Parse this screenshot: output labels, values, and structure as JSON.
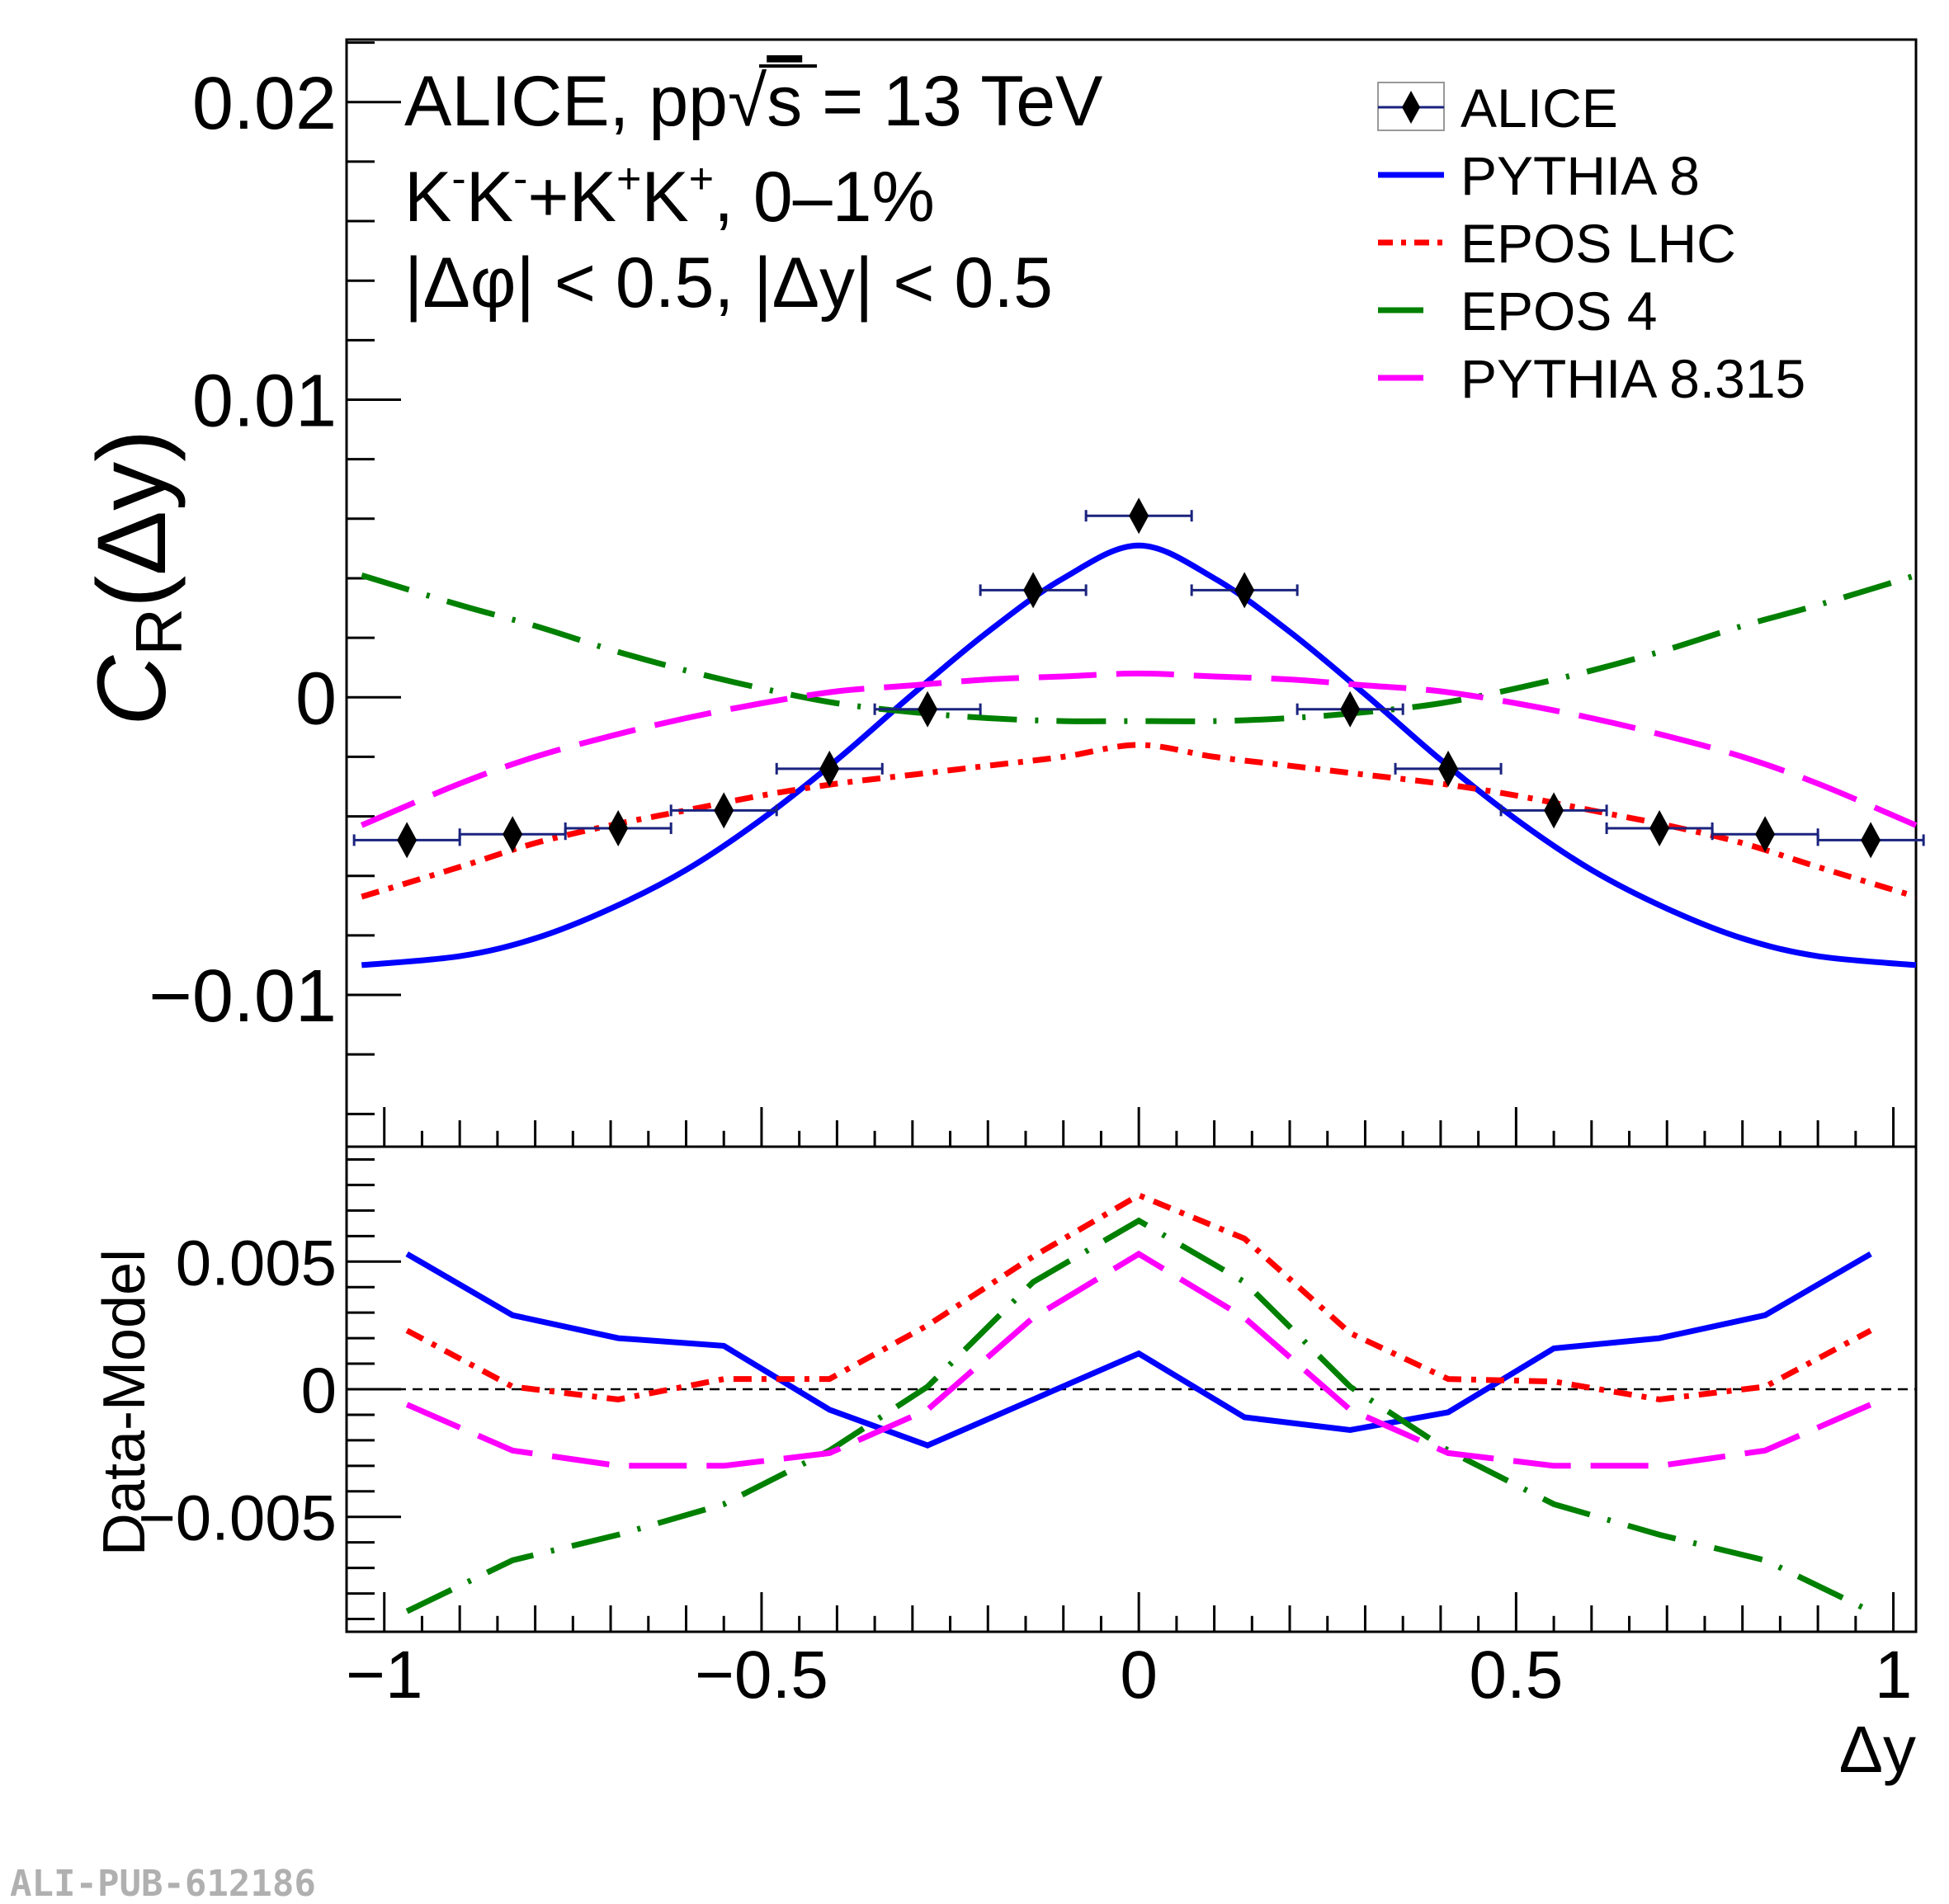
{
  "colors": {
    "alice": "#000000",
    "alice_errbar": "#1a237e",
    "pythia8": "#0000ff",
    "epos_lhc": "#ff0000",
    "epos4": "#008000",
    "pythia8315": "#ff00ff"
  },
  "annotations": {
    "line1_prefix": "ALICE, pp",
    "line1_sqrt": "√",
    "line1_s": "s",
    "line1_suffix": " = 13 TeV",
    "line2_k1": "K",
    "line2_m1": "-",
    "line2_k2": "K",
    "line2_m2": "-",
    "line2_plus": "+K",
    "line2_p1": "+",
    "line2_k3": "K",
    "line2_p2": "+",
    "line2_tail": ", 0–1%",
    "line3": "|Δφ| < 0.5, |Δy| < 0.5"
  },
  "watermark": "ALI-PUB-612186",
  "chart_data": [
    {
      "type": "line",
      "panel": "top",
      "ylabel_main": "C",
      "ylabel_sub": "R",
      "ylabel_arg": "(Δy)",
      "xlim": [
        -1.05,
        1.03
      ],
      "ylim": [
        -0.0151,
        0.0221
      ],
      "yticks": [
        -0.01,
        0,
        0.01,
        0.02
      ],
      "ytick_labels": [
        "−0.01",
        "0",
        "0.01",
        "0.02"
      ],
      "legend_position": "top-right",
      "legend": [
        "ALICE",
        "PYTHIA 8",
        "EPOS LHC",
        "EPOS 4",
        "PYTHIA 8.315"
      ],
      "data_points": {
        "name": "ALICE",
        "x": [
          -0.97,
          -0.83,
          -0.69,
          -0.55,
          -0.41,
          -0.28,
          -0.14,
          0.0,
          0.14,
          0.28,
          0.41,
          0.55,
          0.69,
          0.83,
          0.97
        ],
        "xerr": 0.07,
        "y": [
          -0.0048,
          -0.0046,
          -0.0044,
          -0.0038,
          -0.0024,
          -0.0004,
          0.0036,
          0.0061,
          0.0036,
          -0.0004,
          -0.0024,
          -0.0038,
          -0.0044,
          -0.0046,
          -0.0048
        ]
      },
      "series": [
        {
          "name": "PYTHIA 8",
          "x": [
            -1.03,
            -0.9,
            -0.8,
            -0.7,
            -0.6,
            -0.5,
            -0.4,
            -0.3,
            -0.2,
            -0.1,
            0.0,
            0.1,
            0.2,
            0.3,
            0.4,
            0.5,
            0.6,
            0.7,
            0.8,
            0.9,
            1.03
          ],
          "y": [
            -0.009,
            -0.0087,
            -0.0081,
            -0.0071,
            -0.0058,
            -0.0041,
            -0.0021,
            0.0001,
            0.0022,
            0.004,
            0.0051,
            0.004,
            0.0022,
            0.0001,
            -0.0021,
            -0.0041,
            -0.0058,
            -0.0071,
            -0.0081,
            -0.0087,
            -0.009
          ]
        },
        {
          "name": "EPOS LHC",
          "x": [
            -1.03,
            -0.9,
            -0.8,
            -0.7,
            -0.6,
            -0.5,
            -0.4,
            -0.3,
            -0.2,
            -0.1,
            0.0,
            0.1,
            0.2,
            0.3,
            0.4,
            0.5,
            0.6,
            0.7,
            0.8,
            0.9,
            1.03
          ],
          "y": [
            -0.0067,
            -0.0057,
            -0.0049,
            -0.0043,
            -0.0038,
            -0.0033,
            -0.0029,
            -0.0026,
            -0.0023,
            -0.002,
            -0.0016,
            -0.002,
            -0.0023,
            -0.0026,
            -0.0029,
            -0.0033,
            -0.0038,
            -0.0043,
            -0.0049,
            -0.0057,
            -0.0067
          ]
        },
        {
          "name": "EPOS 4",
          "x": [
            -1.03,
            -0.9,
            -0.8,
            -0.7,
            -0.6,
            -0.5,
            -0.4,
            -0.3,
            -0.2,
            -0.1,
            0.0,
            0.1,
            0.2,
            0.3,
            0.4,
            0.5,
            0.6,
            0.7,
            0.8,
            0.9,
            1.03
          ],
          "y": [
            0.0041,
            0.0031,
            0.0024,
            0.0016,
            0.0009,
            0.0003,
            -0.0002,
            -0.0005,
            -0.0007,
            -0.0008,
            -0.0008,
            -0.0008,
            -0.0007,
            -0.0005,
            -0.0002,
            0.0003,
            0.0009,
            0.0016,
            0.0024,
            0.0031,
            0.0041
          ]
        },
        {
          "name": "PYTHIA 8.315",
          "x": [
            -1.03,
            -0.9,
            -0.8,
            -0.7,
            -0.6,
            -0.5,
            -0.4,
            -0.3,
            -0.2,
            -0.1,
            0.0,
            0.1,
            0.2,
            0.3,
            0.4,
            0.5,
            0.6,
            0.7,
            0.8,
            0.9,
            1.03
          ],
          "y": [
            -0.0043,
            -0.0029,
            -0.002,
            -0.0013,
            -0.0007,
            -0.0002,
            0.0002,
            0.0004,
            0.0006,
            0.0007,
            0.0008,
            0.0007,
            0.0006,
            0.0004,
            0.0002,
            -0.0002,
            -0.0007,
            -0.0013,
            -0.002,
            -0.0029,
            -0.0043
          ]
        }
      ]
    },
    {
      "type": "line",
      "panel": "bottom",
      "ylabel": "Data-Model",
      "xlabel": "Δy",
      "xlim": [
        -1.05,
        1.03
      ],
      "ylim": [
        -0.0095,
        0.0095
      ],
      "yticks": [
        -0.005,
        0,
        0.005
      ],
      "ytick_labels": [
        "−0.005",
        "0",
        "0.005"
      ],
      "xticks": [
        -1,
        -0.5,
        0,
        0.5,
        1
      ],
      "xtick_labels": [
        "−1",
        "−0.5",
        "0",
        "0.5",
        "1"
      ],
      "reference_line": 0,
      "series": [
        {
          "name": "PYTHIA 8",
          "x": [
            -0.97,
            -0.83,
            -0.69,
            -0.55,
            -0.41,
            -0.28,
            -0.14,
            0.0,
            0.14,
            0.28,
            0.41,
            0.55,
            0.69,
            0.83,
            0.97
          ],
          "y": [
            0.0053,
            0.0029,
            0.002,
            0.0017,
            -0.0008,
            -0.0022,
            -0.0004,
            0.0014,
            -0.0011,
            -0.0016,
            -0.0009,
            0.0016,
            0.002,
            0.0029,
            0.0053
          ]
        },
        {
          "name": "EPOS LHC",
          "x": [
            -0.97,
            -0.83,
            -0.69,
            -0.55,
            -0.41,
            -0.28,
            -0.14,
            0.0,
            0.14,
            0.28,
            0.41,
            0.55,
            0.69,
            0.83,
            0.97
          ],
          "y": [
            0.0023,
            0.0001,
            -0.0004,
            0.0004,
            0.0004,
            0.0025,
            0.0052,
            0.0076,
            0.0059,
            0.0022,
            0.0004,
            0.0003,
            -0.0004,
            0.0001,
            0.0023
          ]
        },
        {
          "name": "EPOS 4",
          "x": [
            -0.97,
            -0.83,
            -0.69,
            -0.55,
            -0.41,
            -0.28,
            -0.14,
            0.0,
            0.14,
            0.28,
            0.41,
            0.55,
            0.69,
            0.83,
            0.97
          ],
          "y": [
            -0.0087,
            -0.0067,
            -0.0057,
            -0.0045,
            -0.0024,
            0.0001,
            0.0042,
            0.0066,
            0.0042,
            0.0001,
            -0.0024,
            -0.0045,
            -0.0057,
            -0.0067,
            -0.0087
          ]
        },
        {
          "name": "PYTHIA 8.315",
          "x": [
            -0.97,
            -0.83,
            -0.69,
            -0.55,
            -0.41,
            -0.28,
            -0.14,
            0.0,
            0.14,
            0.28,
            0.41,
            0.55,
            0.69,
            0.83,
            0.97
          ],
          "y": [
            -0.0006,
            -0.0024,
            -0.003,
            -0.003,
            -0.0025,
            -0.0008,
            0.0028,
            0.0053,
            0.0028,
            -0.0008,
            -0.0025,
            -0.003,
            -0.003,
            -0.0024,
            -0.0006
          ]
        }
      ]
    }
  ]
}
